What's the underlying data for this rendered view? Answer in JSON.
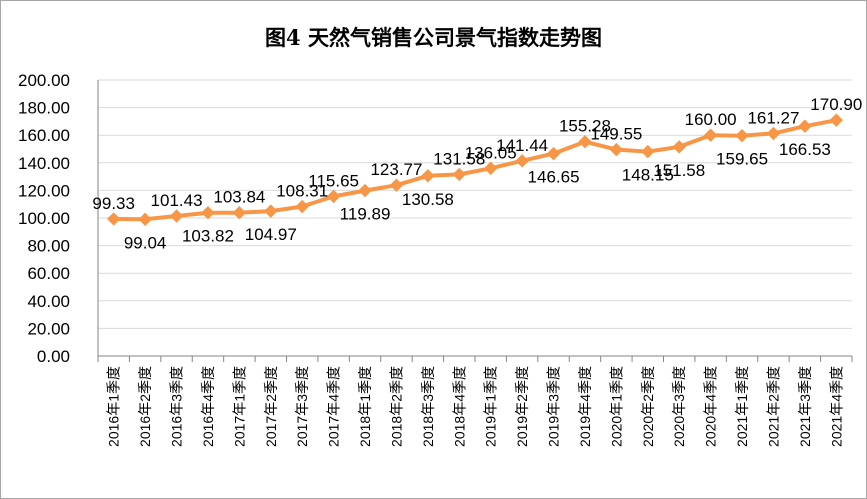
{
  "chart_data": {
    "type": "line",
    "title": "图4  天然气销售公司景气指数走势图",
    "xlabel": "",
    "ylabel": "",
    "ylim": [
      0,
      200
    ],
    "yticks": [
      "0.00",
      "20.00",
      "40.00",
      "60.00",
      "80.00",
      "100.00",
      "120.00",
      "140.00",
      "160.00",
      "180.00",
      "200.00"
    ],
    "grid": true,
    "legend": "none",
    "colors": {
      "line": "#f79646",
      "grid": "#d9d9d9",
      "axis": "#868686"
    },
    "categories": [
      "2016年1季度",
      "2016年2季度",
      "2016年3季度",
      "2016年4季度",
      "2017年1季度",
      "2017年2季度",
      "2017年3季度",
      "2017年4季度",
      "2018年1季度",
      "2018年2季度",
      "2018年3季度",
      "2018年4季度",
      "2019年1季度",
      "2019年2季度",
      "2019年3季度",
      "2019年4季度",
      "2020年1季度",
      "2020年2季度",
      "2020年3季度",
      "2020年4季度",
      "2021年1季度",
      "2021年2季度",
      "2021年3季度",
      "2021年4季度"
    ],
    "series": [
      {
        "values": [
          99.33,
          99.04,
          101.43,
          103.82,
          103.84,
          104.97,
          108.31,
          115.65,
          119.89,
          123.77,
          130.58,
          131.58,
          136.05,
          141.44,
          146.65,
          155.28,
          149.55,
          148.15,
          151.58,
          160.0,
          159.65,
          161.27,
          166.53,
          170.9
        ],
        "labels": [
          "99.33",
          "99.04",
          "101.43",
          "103.82",
          "103.84",
          "104.97",
          "108.31",
          "115.65",
          "119.89",
          "123.77",
          "130.58",
          "131.58",
          "136.05",
          "141.44",
          "146.65",
          "155.28",
          "149.55",
          "148.15",
          "151.58",
          "160.00",
          "159.65",
          "161.27",
          "166.53",
          "170.90"
        ]
      }
    ]
  }
}
